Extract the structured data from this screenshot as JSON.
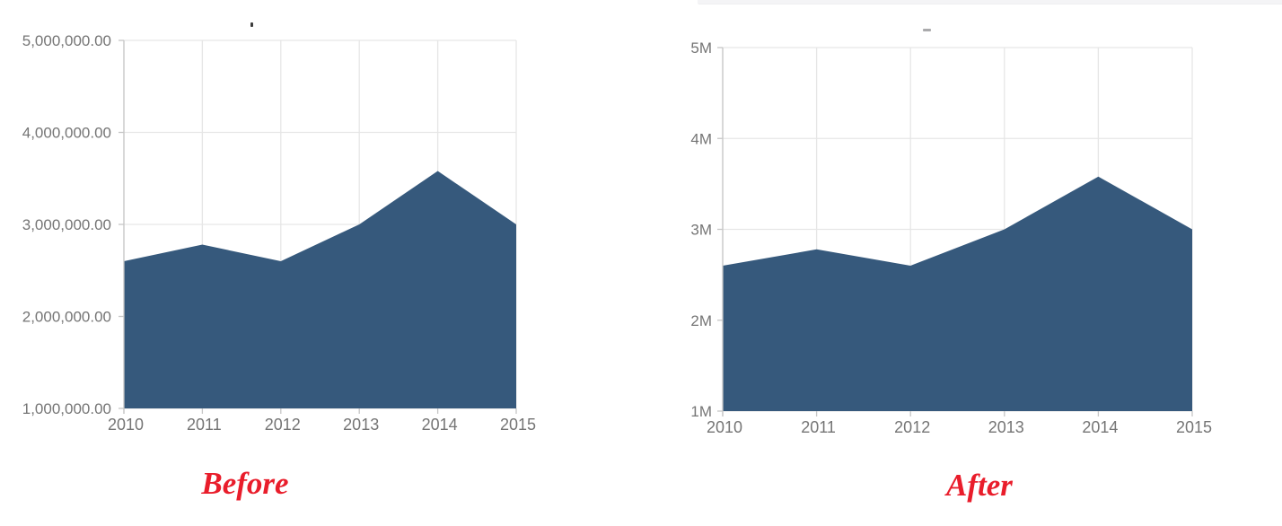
{
  "page": {
    "background": "#ffffff",
    "top_bar_color": "#f4f4f6",
    "accent_red": "#e91d2b",
    "axis_label_color": "#757575",
    "grid_color": "#e6e6e6",
    "axis_color": "#c6c6c6"
  },
  "chart_data": [
    {
      "type": "area",
      "caption": "Before",
      "title": "",
      "categories": [
        "2010",
        "2011",
        "2012",
        "2013",
        "2014",
        "2015"
      ],
      "values": [
        2600000,
        2780000,
        2600000,
        3000000,
        3580000,
        3000000
      ],
      "ylim": [
        1000000,
        5000000
      ],
      "y_ticks": [
        5000000,
        4000000,
        3000000,
        2000000,
        1000000
      ],
      "y_tick_labels": [
        "5,000,000.00",
        "4,000,000.00",
        "3,000,000.00",
        "2,000,000.00",
        "1,000,000.00"
      ],
      "xlabel": "",
      "ylabel": "",
      "grid": true,
      "legend_position": "none",
      "fill_color": "#36597c"
    },
    {
      "type": "area",
      "caption": "After",
      "title": "",
      "categories": [
        "2010",
        "2011",
        "2012",
        "2013",
        "2014",
        "2015"
      ],
      "values": [
        2600000,
        2780000,
        2600000,
        3000000,
        3580000,
        3000000
      ],
      "ylim": [
        1000000,
        5000000
      ],
      "y_ticks": [
        5000000,
        4000000,
        3000000,
        2000000,
        1000000
      ],
      "y_tick_labels": [
        "5M",
        "4M",
        "3M",
        "2M",
        "1M"
      ],
      "xlabel": "",
      "ylabel": "",
      "grid": true,
      "legend_position": "none",
      "fill_color": "#36597c"
    }
  ]
}
